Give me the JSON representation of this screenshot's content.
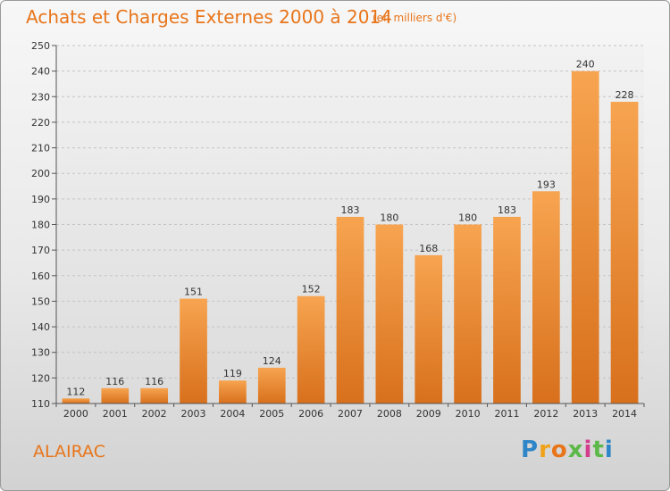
{
  "chart_data": {
    "type": "bar",
    "title": "Achats et Charges Externes 2000 à 2014",
    "subtitle": "(en milliers d'€)",
    "categories": [
      "2000",
      "2001",
      "2002",
      "2003",
      "2004",
      "2005",
      "2006",
      "2007",
      "2008",
      "2009",
      "2010",
      "2011",
      "2012",
      "2013",
      "2014"
    ],
    "values": [
      112,
      116,
      116,
      151,
      119,
      124,
      152,
      183,
      180,
      168,
      180,
      183,
      193,
      240,
      228
    ],
    "ylim": [
      110,
      250
    ],
    "yticks": [
      110,
      120,
      130,
      140,
      150,
      160,
      170,
      180,
      190,
      200,
      210,
      220,
      230,
      240,
      250
    ],
    "grid": true,
    "legend": "none",
    "colors": {
      "bar_top": "#f7a450",
      "bar_bottom": "#d8701c",
      "text_accent": "#e8751a"
    }
  },
  "footer": {
    "town": "ALAIRAC",
    "brand_letters": [
      "P",
      "r",
      "o",
      "x",
      "i",
      "t",
      "i"
    ]
  }
}
